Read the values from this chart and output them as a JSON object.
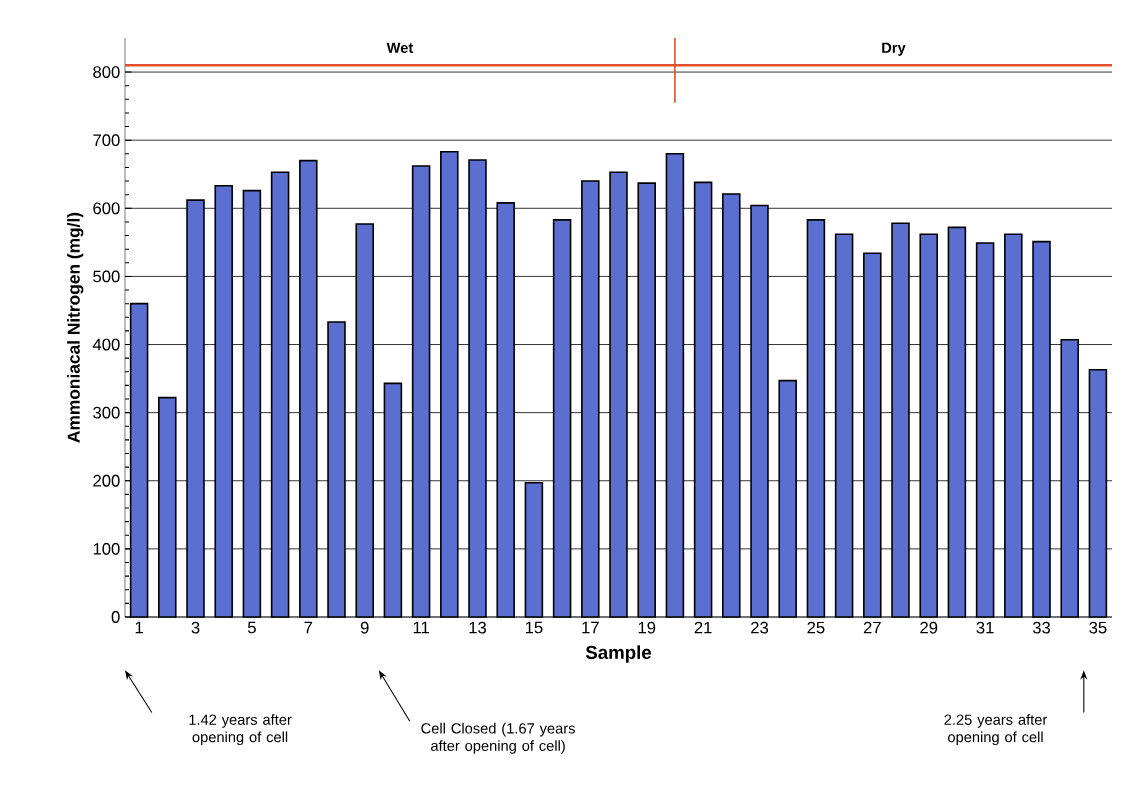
{
  "chart_data": {
    "type": "bar",
    "xlabel": "Sample",
    "ylabel": "Ammoniacal Nitrogen (mg/l)",
    "x": [
      1,
      2,
      3,
      4,
      5,
      6,
      7,
      8,
      9,
      10,
      11,
      12,
      13,
      14,
      15,
      16,
      17,
      18,
      19,
      20,
      21,
      22,
      23,
      24,
      25,
      26,
      27,
      28,
      29,
      30,
      31,
      32,
      33,
      34,
      35
    ],
    "values": [
      460,
      322,
      612,
      633,
      626,
      653,
      670,
      433,
      577,
      343,
      662,
      683,
      671,
      608,
      197,
      583,
      640,
      653,
      637,
      680,
      638,
      621,
      604,
      347,
      583,
      562,
      534,
      578,
      562,
      572,
      549,
      562,
      551,
      407,
      363
    ],
    "color": "#5a6fd0",
    "xlim": [
      0.5,
      35.5
    ],
    "xticks": [
      1,
      3,
      5,
      7,
      9,
      11,
      13,
      15,
      17,
      19,
      21,
      23,
      25,
      27,
      29,
      31,
      33,
      35
    ],
    "ylim": [
      0,
      850
    ],
    "yticks": [
      0,
      100,
      200,
      300,
      400,
      500,
      600,
      700,
      800
    ],
    "grid": "y",
    "ref_lines": [
      {
        "axis": "y",
        "value": 810,
        "color": "#e0502a"
      },
      {
        "axis": "x",
        "value": 20,
        "color": "#e0502a"
      }
    ],
    "annotations": [
      "Wet",
      "Dry",
      "1.42 years after opening of cell",
      "Cell Closed (1.67 years after opening of cell)",
      "2.25 years after opening of cell"
    ]
  }
}
